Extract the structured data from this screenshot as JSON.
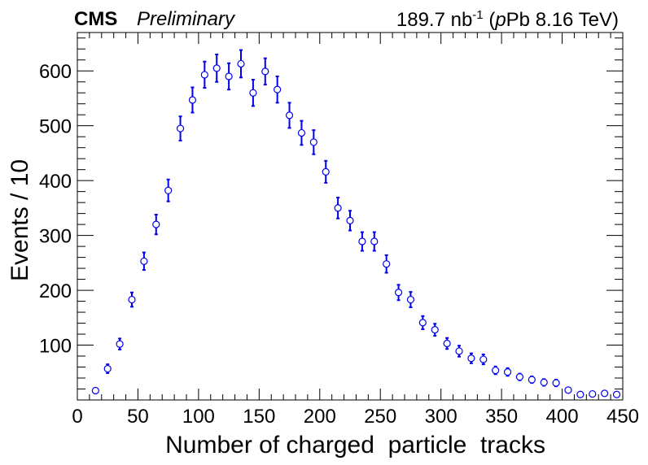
{
  "header": {
    "experiment": "CMS",
    "status": "Preliminary",
    "lumi_value": "189.7 nb",
    "lumi_exp": "-1",
    "system_italic": "p",
    "system_rest": "Pb 8.16 TeV)",
    "system_open": "("
  },
  "chart_data": {
    "type": "scatter",
    "marker": "open-circle",
    "color": "#0000ee",
    "xlabel": "Number of charged  particle  tracks",
    "ylabel": "Events / 10",
    "xlim": [
      0,
      450
    ],
    "ylim": [
      0,
      670
    ],
    "x_ticks": [
      0,
      50,
      100,
      150,
      200,
      250,
      300,
      350,
      400,
      450
    ],
    "y_ticks": [
      100,
      200,
      300,
      400,
      500,
      600
    ],
    "grid": false,
    "series": [
      {
        "x": [
          15,
          25,
          35,
          45,
          55,
          65,
          75,
          85,
          95,
          105,
          115,
          125,
          135,
          145,
          155,
          165,
          175,
          185,
          195,
          205,
          215,
          225,
          235,
          245,
          255,
          265,
          275,
          285,
          295,
          305,
          315,
          325,
          335,
          345,
          355,
          365,
          375,
          385,
          395,
          405,
          415,
          425,
          435,
          445
        ],
        "y": [
          17,
          57,
          102,
          183,
          253,
          320,
          382,
          495,
          547,
          593,
          605,
          590,
          613,
          560,
          599,
          566,
          519,
          487,
          470,
          416,
          350,
          327,
          289,
          289,
          248,
          196,
          183,
          141,
          128,
          103,
          89,
          76,
          74,
          54,
          51,
          42,
          37,
          32,
          31,
          18,
          10,
          11,
          12,
          10
        ],
        "err": [
          4,
          8,
          10,
          13,
          16,
          18,
          20,
          22,
          23,
          24,
          25,
          24,
          25,
          24,
          24,
          24,
          23,
          22,
          22,
          20,
          19,
          18,
          17,
          17,
          16,
          14,
          14,
          12,
          11,
          10,
          10,
          9,
          9,
          7,
          7,
          6,
          6,
          6,
          6,
          4,
          3,
          3,
          3,
          3
        ]
      }
    ]
  }
}
